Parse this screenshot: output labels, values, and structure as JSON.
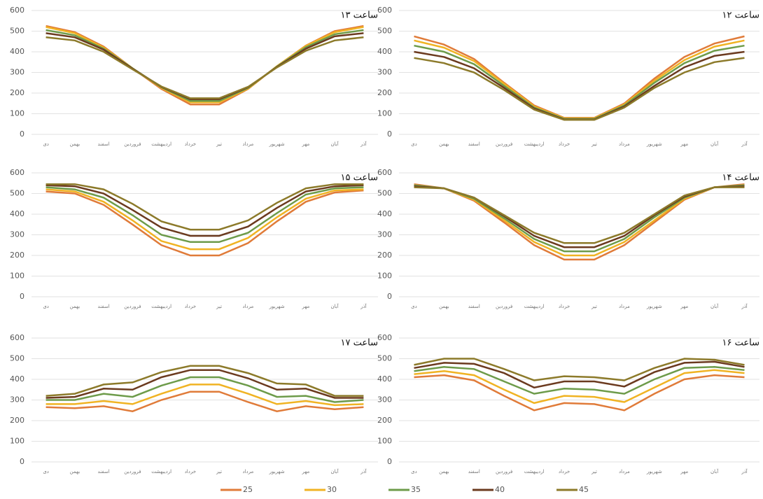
{
  "chart_data": [
    {
      "type": "line",
      "title": "ساعت ۱۳",
      "categories": [
        "دی",
        "بهمن",
        "اسفند",
        "فروردین",
        "اردیبهشت",
        "خرداد",
        "تیر",
        "مرداد",
        "شهریور",
        "مهر",
        "آبان",
        "آذر"
      ],
      "series": [
        {
          "values": [
            525,
            495,
            425,
            320,
            220,
            145,
            145,
            220,
            330,
            430,
            500,
            525
          ]
        },
        {
          "values": [
            520,
            490,
            420,
            320,
            225,
            155,
            155,
            222,
            330,
            428,
            495,
            520
          ]
        },
        {
          "values": [
            505,
            480,
            415,
            320,
            228,
            162,
            162,
            225,
            328,
            422,
            485,
            505
          ]
        },
        {
          "values": [
            490,
            470,
            410,
            318,
            230,
            170,
            170,
            228,
            326,
            415,
            475,
            490
          ]
        },
        {
          "values": [
            470,
            455,
            400,
            315,
            232,
            175,
            175,
            230,
            324,
            405,
            455,
            470
          ]
        }
      ],
      "ylim": [
        0,
        600
      ],
      "yticks": [
        0,
        100,
        200,
        300,
        400,
        500,
        600
      ],
      "grid": true
    },
    {
      "type": "line",
      "title": "ساعت ۱۲",
      "categories": [
        "دی",
        "بهمن",
        "اسفند",
        "فروردین",
        "اردیبهشت",
        "خرداد",
        "تیر",
        "مرداد",
        "شهریور",
        "مهر",
        "آبان",
        "آذر"
      ],
      "series": [
        {
          "values": [
            475,
            435,
            365,
            250,
            140,
            80,
            80,
            150,
            270,
            375,
            440,
            475
          ]
        },
        {
          "values": [
            455,
            420,
            355,
            245,
            135,
            78,
            78,
            145,
            260,
            360,
            425,
            455
          ]
        },
        {
          "values": [
            430,
            400,
            340,
            235,
            130,
            75,
            75,
            140,
            250,
            345,
            405,
            430
          ]
        },
        {
          "values": [
            400,
            375,
            320,
            225,
            125,
            72,
            72,
            135,
            235,
            325,
            380,
            400
          ]
        },
        {
          "values": [
            370,
            345,
            300,
            215,
            120,
            70,
            70,
            130,
            225,
            300,
            350,
            370
          ]
        }
      ],
      "ylim": [
        0,
        600
      ],
      "yticks": [
        0,
        100,
        200,
        300,
        400,
        500,
        600
      ],
      "grid": true
    },
    {
      "type": "line",
      "title": "ساعت ۱۵",
      "categories": [
        "دی",
        "بهمن",
        "اسفند",
        "فروردین",
        "اردیبهشت",
        "خرداد",
        "تیر",
        "مرداد",
        "شهریور",
        "مهر",
        "آبان",
        "آذر"
      ],
      "series": [
        {
          "values": [
            510,
            500,
            445,
            350,
            250,
            200,
            200,
            260,
            365,
            460,
            505,
            515
          ]
        },
        {
          "values": [
            520,
            510,
            460,
            370,
            270,
            230,
            230,
            285,
            385,
            475,
            515,
            520
          ]
        },
        {
          "values": [
            530,
            520,
            480,
            395,
            300,
            265,
            265,
            310,
            405,
            495,
            525,
            530
          ]
        },
        {
          "values": [
            540,
            535,
            500,
            420,
            335,
            295,
            295,
            340,
            430,
            510,
            535,
            540
          ]
        },
        {
          "values": [
            545,
            545,
            520,
            450,
            365,
            325,
            325,
            370,
            455,
            525,
            545,
            545
          ]
        }
      ],
      "ylim": [
        0,
        600
      ],
      "yticks": [
        0,
        100,
        200,
        300,
        400,
        500,
        600
      ],
      "grid": true
    },
    {
      "type": "line",
      "title": "ساعت ۱۴",
      "categories": [
        "دی",
        "بهمن",
        "اسفند",
        "فروردین",
        "اردیبهشت",
        "خرداد",
        "تیر",
        "مرداد",
        "شهریور",
        "مهر",
        "آبان",
        "آذر"
      ],
      "series": [
        {
          "values": [
            545,
            525,
            465,
            360,
            250,
            180,
            180,
            250,
            360,
            470,
            530,
            545
          ]
        },
        {
          "values": [
            540,
            525,
            470,
            370,
            265,
            200,
            200,
            265,
            370,
            475,
            530,
            540
          ]
        },
        {
          "values": [
            540,
            525,
            475,
            380,
            280,
            220,
            220,
            280,
            385,
            480,
            530,
            540
          ]
        },
        {
          "values": [
            535,
            525,
            480,
            390,
            295,
            240,
            240,
            295,
            395,
            485,
            530,
            535
          ]
        },
        {
          "values": [
            530,
            525,
            480,
            395,
            310,
            260,
            260,
            310,
            400,
            490,
            530,
            530
          ]
        }
      ],
      "ylim": [
        0,
        600
      ],
      "yticks": [
        0,
        100,
        200,
        300,
        400,
        500,
        600
      ],
      "grid": true
    },
    {
      "type": "line",
      "title": "ساعت ۱۷",
      "categories": [
        "دی",
        "بهمن",
        "اسفند",
        "فروردین",
        "اردیبهشت",
        "خرداد",
        "تیر",
        "مرداد",
        "شهریور",
        "مهر",
        "آبان",
        "آذر"
      ],
      "series": [
        {
          "values": [
            265,
            260,
            270,
            245,
            300,
            340,
            340,
            290,
            245,
            270,
            255,
            265
          ]
        },
        {
          "values": [
            280,
            280,
            295,
            280,
            330,
            375,
            375,
            330,
            280,
            295,
            275,
            280
          ]
        },
        {
          "values": [
            300,
            300,
            330,
            315,
            370,
            410,
            410,
            370,
            315,
            320,
            290,
            300
          ]
        },
        {
          "values": [
            310,
            315,
            355,
            350,
            410,
            445,
            445,
            405,
            350,
            355,
            310,
            310
          ]
        },
        {
          "values": [
            320,
            330,
            375,
            385,
            435,
            465,
            465,
            430,
            380,
            375,
            320,
            320
          ]
        }
      ],
      "ylim": [
        0,
        600
      ],
      "yticks": [
        0,
        100,
        200,
        300,
        400,
        500,
        600
      ],
      "grid": true
    },
    {
      "type": "line",
      "title": "ساعت ۱۶",
      "categories": [
        "دی",
        "بهمن",
        "اسفند",
        "فروردین",
        "اردیبهشت",
        "خرداد",
        "تیر",
        "مرداد",
        "شهریور",
        "مهر",
        "آبان",
        "آذر"
      ],
      "series": [
        {
          "values": [
            410,
            420,
            395,
            320,
            250,
            285,
            280,
            250,
            330,
            400,
            420,
            410
          ]
        },
        {
          "values": [
            425,
            440,
            420,
            350,
            285,
            320,
            315,
            290,
            360,
            430,
            445,
            430
          ]
        },
        {
          "values": [
            440,
            460,
            450,
            390,
            330,
            355,
            350,
            330,
            400,
            455,
            460,
            445
          ]
        },
        {
          "values": [
            455,
            480,
            475,
            430,
            360,
            390,
            390,
            365,
            435,
            480,
            485,
            460
          ]
        },
        {
          "values": [
            470,
            500,
            500,
            450,
            395,
            415,
            410,
            395,
            455,
            500,
            495,
            470
          ]
        }
      ],
      "ylim": [
        0,
        600
      ],
      "yticks": [
        0,
        100,
        200,
        300,
        400,
        500,
        600
      ],
      "grid": true
    }
  ],
  "legend": {
    "items": [
      {
        "name": "25",
        "color": "#e07b39"
      },
      {
        "name": "30",
        "color": "#f0b323"
      },
      {
        "name": "35",
        "color": "#6d9b4a"
      },
      {
        "name": "40",
        "color": "#6b3a1f"
      },
      {
        "name": "45",
        "color": "#8c7a2a"
      }
    ]
  }
}
